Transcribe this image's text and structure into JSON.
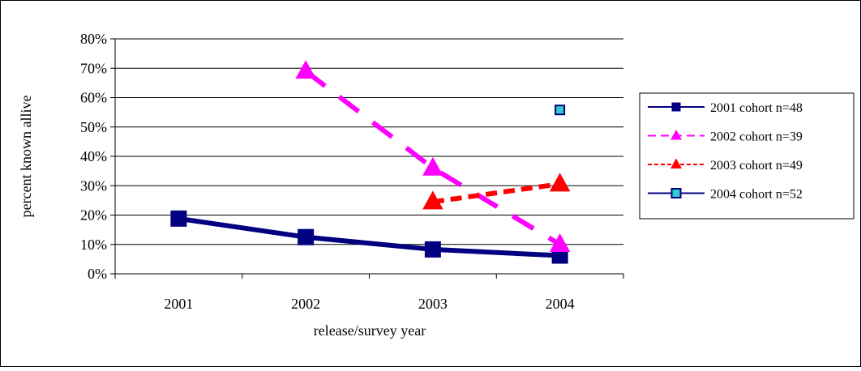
{
  "chart_data": {
    "type": "line",
    "title": "",
    "xlabel": "release/survey year",
    "ylabel": "percent known allive",
    "categories": [
      "2001",
      "2002",
      "2003",
      "2004"
    ],
    "ylim": [
      0,
      0.8
    ],
    "yticks": [
      0,
      0.1,
      0.2,
      0.3,
      0.4,
      0.5,
      0.6,
      0.7,
      0.8
    ],
    "ytick_labels": [
      "0%",
      "10%",
      "20%",
      "30%",
      "40%",
      "50%",
      "60%",
      "70%",
      "80%"
    ],
    "grid": "horizontal",
    "legend_position": "right",
    "series": [
      {
        "name": "2001 cohort n=48",
        "values": [
          0.188,
          0.125,
          0.083,
          0.062
        ],
        "color": "#000080",
        "line_style": "solid",
        "marker": "square"
      },
      {
        "name": "2002 cohort n=39",
        "values": [
          null,
          0.69,
          0.36,
          0.1
        ],
        "color": "#ff00ff",
        "line_style": "dash",
        "marker": "triangle"
      },
      {
        "name": "2003 cohort n=49",
        "values": [
          null,
          null,
          0.245,
          0.306
        ],
        "color": "#ff0000",
        "line_style": "short-dash",
        "marker": "triangle"
      },
      {
        "name": "2004 cohort n=52",
        "values": [
          null,
          null,
          null,
          0.558
        ],
        "color": "#33cccc",
        "marker_edge": "#000080",
        "line_style": "solid",
        "marker": "square"
      }
    ]
  }
}
